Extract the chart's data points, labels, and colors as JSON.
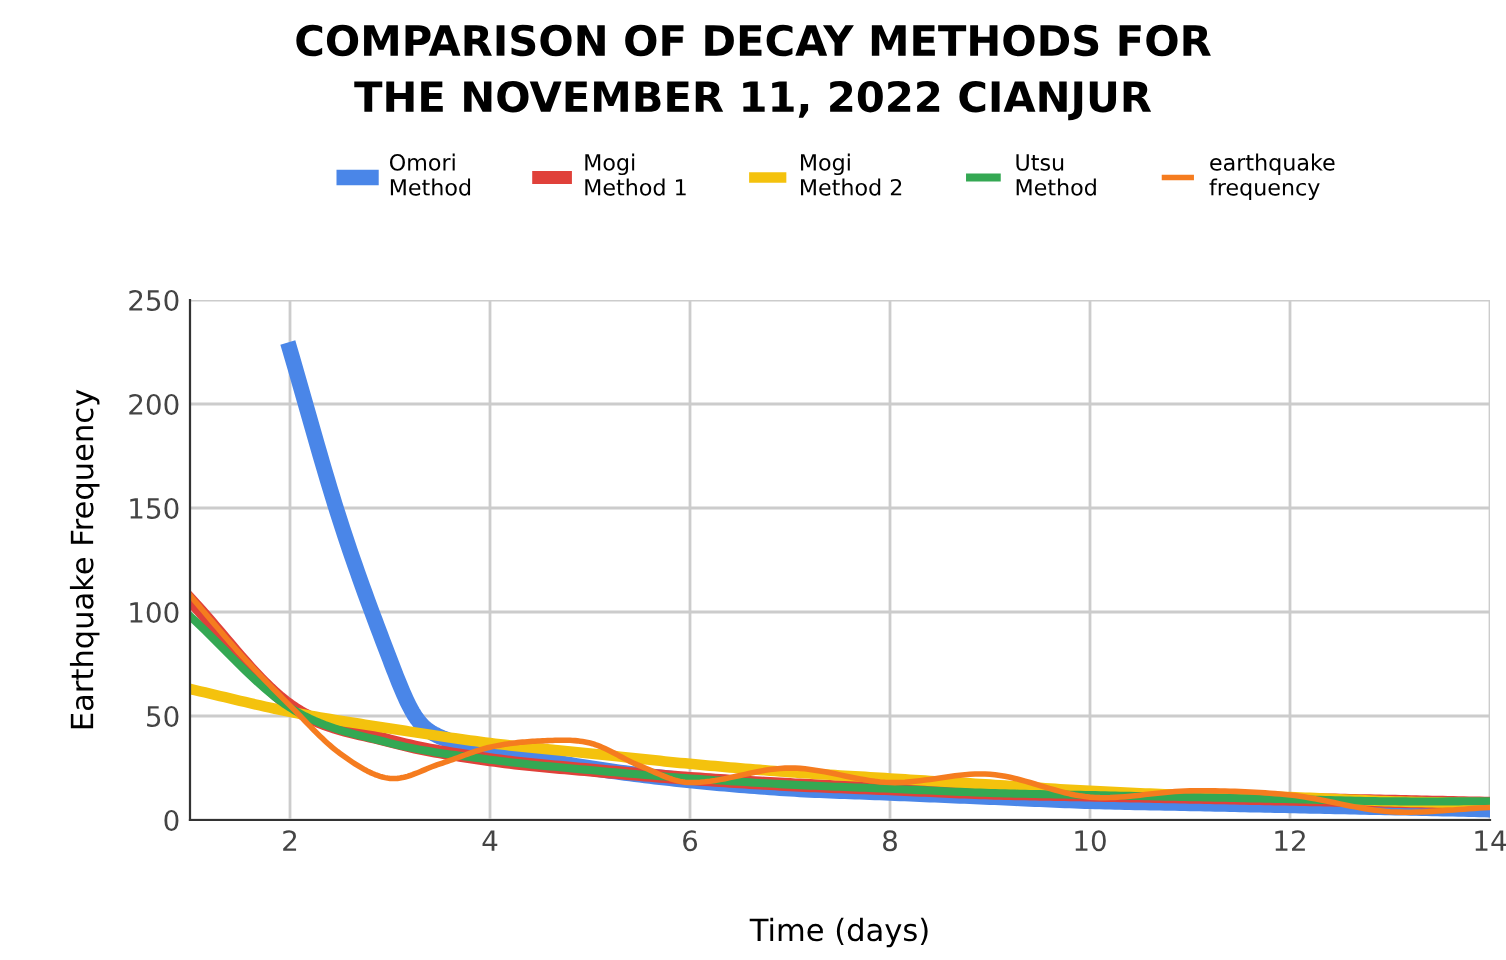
{
  "chart_data": {
    "type": "line",
    "title": "COMPARISON OF DECAY METHODS FOR\nTHE NOVEMBER 11, 2022 CIANJUR",
    "xlabel": "Time (days)",
    "ylabel": "Earthquake Frequency",
    "x": [
      1,
      2,
      3,
      4,
      5,
      6,
      7,
      8,
      9,
      10,
      11,
      12,
      13,
      14
    ],
    "series": [
      {
        "name": "Omori\nMethod",
        "color": "#4a86e8",
        "x": [
          2,
          2.5,
          3,
          3.25,
          3.5,
          4,
          5,
          6,
          7,
          8,
          9,
          10,
          11,
          12,
          13,
          14
        ],
        "values": [
          226,
          144,
          77,
          50,
          40,
          34,
          25,
          19,
          15,
          13,
          11,
          9,
          8,
          7,
          6,
          5
        ]
      },
      {
        "name": "Mogi\nMethod 1",
        "color": "#e0413a",
        "values": [
          106,
          55,
          38,
          29,
          24,
          20,
          17,
          15,
          13,
          12,
          11,
          10,
          9,
          8
        ]
      },
      {
        "name": "Mogi\nMethod 2",
        "color": "#f4c20d",
        "values": [
          63,
          52,
          44,
          37,
          32,
          27,
          23,
          20,
          17,
          14,
          12,
          11,
          9,
          8
        ]
      },
      {
        "name": "Utsu\nMethod",
        "color": "#34a853",
        "values": [
          98,
          54,
          37,
          29,
          24,
          20,
          17,
          15,
          13,
          12,
          11,
          10,
          9,
          9
        ]
      },
      {
        "name": "earthquake\nfrequency",
        "color": "#f57c1f",
        "x": [
          1,
          1.5,
          2,
          2.5,
          3,
          3.5,
          4,
          4.5,
          5,
          5.5,
          6,
          7,
          8,
          9,
          10,
          11,
          12,
          13,
          14
        ],
        "values": [
          108,
          80,
          55,
          32,
          20,
          27,
          35,
          38,
          37,
          26,
          18,
          25,
          18,
          22,
          11,
          14,
          12,
          4,
          6
        ]
      }
    ],
    "xlim": [
      1,
      14
    ],
    "xticks": [
      2,
      4,
      6,
      8,
      10,
      12,
      14
    ],
    "ylim": [
      0,
      250
    ],
    "yticks": [
      0,
      50,
      100,
      150,
      200,
      250
    ],
    "grid": true,
    "legend": "top",
    "marker": "none",
    "line_style": "solid"
  }
}
